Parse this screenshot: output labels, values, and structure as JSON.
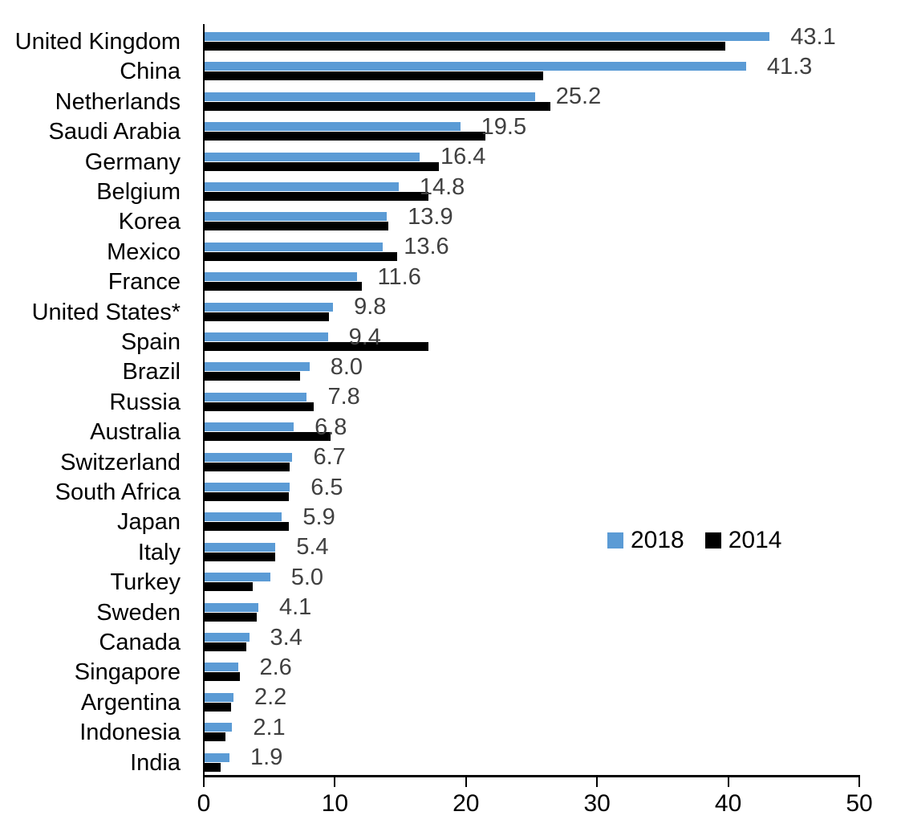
{
  "chart_data": {
    "type": "bar",
    "orientation": "horizontal",
    "title": "",
    "xlabel": "",
    "ylabel": "",
    "xlim": [
      0,
      50
    ],
    "x_ticks": [
      0,
      10,
      20,
      30,
      40,
      50
    ],
    "grid": false,
    "legend_position": "middle-right",
    "categories": [
      "United Kingdom",
      "China",
      "Netherlands",
      "Saudi Arabia",
      "Germany",
      "Belgium",
      "Korea",
      "Mexico",
      "France",
      "United States*",
      "Spain",
      "Brazil",
      "Russia",
      "Australia",
      "Switzerland",
      "South Africa",
      "Japan",
      "Italy",
      "Turkey",
      "Sweden",
      "Canada",
      "Singapore",
      "Argentina",
      "Indonesia",
      "India"
    ],
    "series": [
      {
        "name": "2018",
        "color": "#5B9BD5",
        "values": [
          43.1,
          41.3,
          25.2,
          19.5,
          16.4,
          14.8,
          13.9,
          13.6,
          11.6,
          9.8,
          9.4,
          8.0,
          7.8,
          6.8,
          6.7,
          6.5,
          5.9,
          5.4,
          5.0,
          4.1,
          3.4,
          2.6,
          2.2,
          2.1,
          1.9
        ]
      },
      {
        "name": "2014",
        "color": "#000000",
        "values": [
          39.7,
          25.8,
          26.4,
          21.4,
          17.9,
          17.1,
          14.0,
          14.7,
          12.0,
          9.5,
          17.1,
          7.3,
          8.3,
          9.6,
          6.5,
          6.4,
          6.4,
          5.4,
          3.7,
          4.0,
          3.2,
          2.7,
          2.0,
          1.6,
          1.2
        ]
      }
    ],
    "data_labels_series": "2018",
    "value_labels": [
      "43.1",
      "41.3",
      "25.2",
      "19.5",
      "16.4",
      "14.8",
      "13.9",
      "13.6",
      "11.6",
      "9.8",
      "9.4",
      "8.0",
      "7.8",
      "6.8",
      "6.7",
      "6.5",
      "5.9",
      "5.4",
      "5.0",
      "4.1",
      "3.4",
      "2.6",
      "2.2",
      "2.1",
      "1.9"
    ],
    "value_label_color": "#404040",
    "axis_color": "#000000"
  }
}
